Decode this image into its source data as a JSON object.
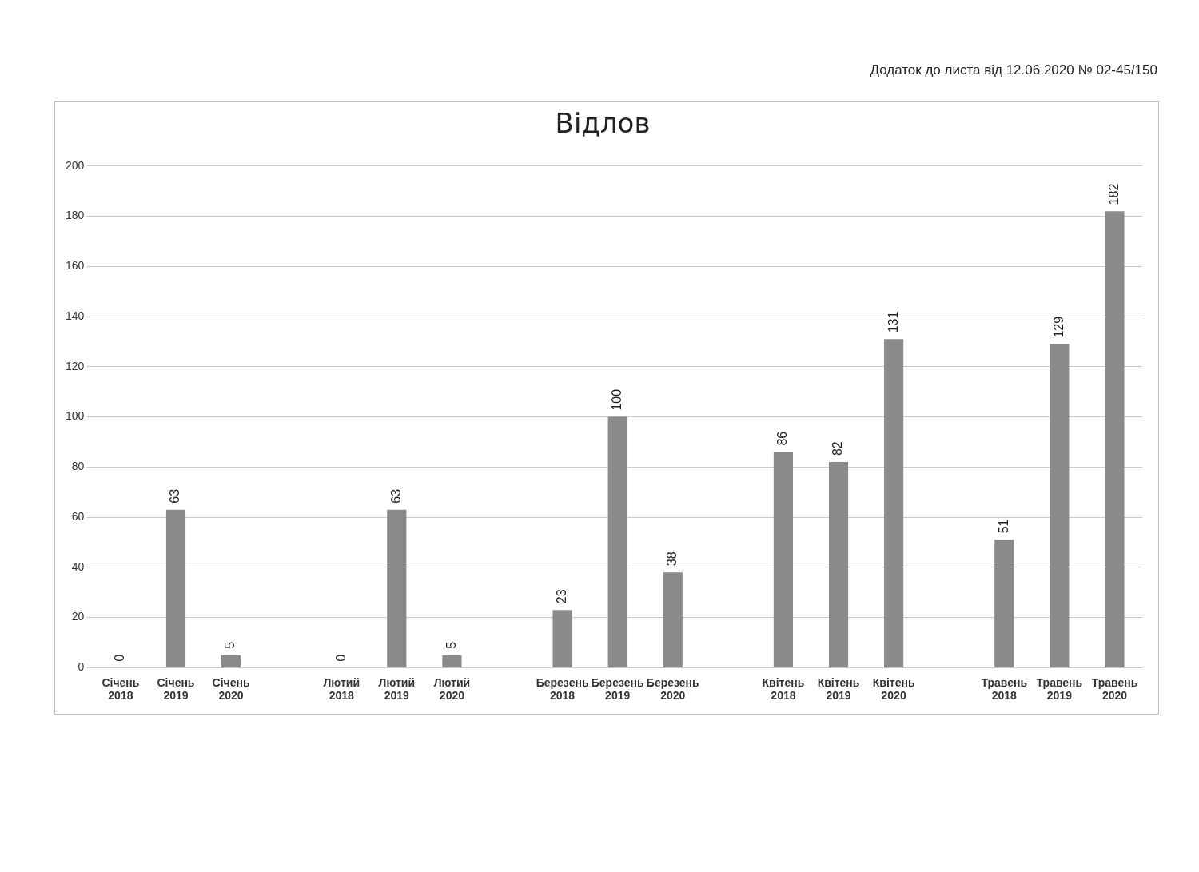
{
  "chart_data": {
    "type": "bar",
    "title": "Відлов",
    "annotations": [
      "Додаток до листа від 12.06.2020 № 02-45/150"
    ],
    "categories": [
      "Січень 2018",
      "Січень 2019",
      "Січень 2020",
      null,
      "Лютий 2018",
      "Лютий 2019",
      "Лютий 2020",
      null,
      "Березень 2018",
      "Березень 2019",
      "Березень 2020",
      null,
      "Квітень 2018",
      "Квітень 2019",
      "Квітень 2020",
      null,
      "Травень 2018",
      "Травень 2019",
      "Травень 2020"
    ],
    "values": [
      0,
      63,
      5,
      null,
      0,
      63,
      5,
      null,
      23,
      100,
      38,
      null,
      86,
      82,
      131,
      null,
      51,
      129,
      182
    ],
    "color": "#8a8a8a",
    "ylim": [
      0,
      200
    ],
    "yticks": [
      0,
      20,
      40,
      60,
      80,
      100,
      120,
      140,
      160,
      180,
      200
    ],
    "grid": "y",
    "data_labels": true,
    "legend": false
  }
}
